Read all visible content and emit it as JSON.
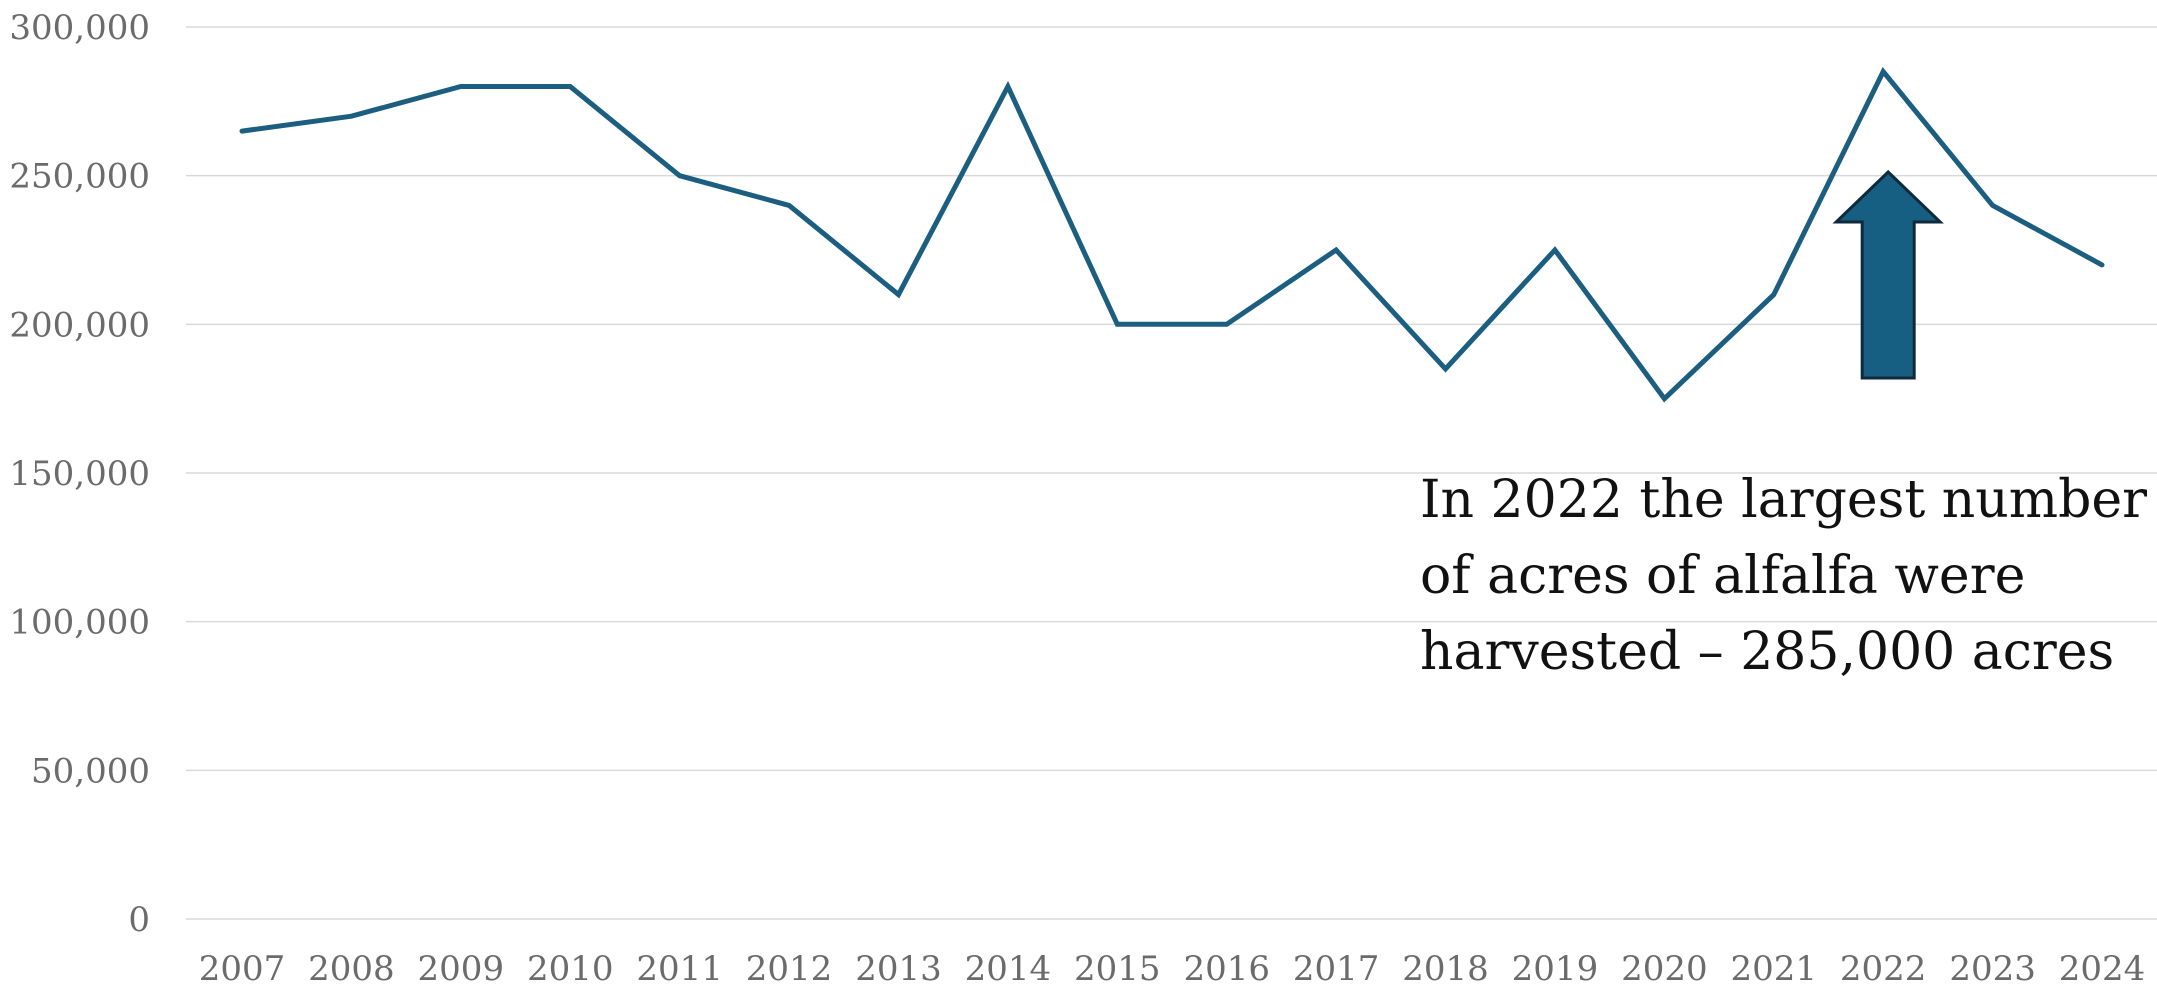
{
  "colors": {
    "series_line": "#1b5e80",
    "arrow_fill": "#165f82",
    "arrow_stroke": "#0f2a3a",
    "gridline": "#d9d9d9",
    "tick_text": "#6b6b6b"
  },
  "chart_data": {
    "type": "line",
    "title": "",
    "xlabel": "",
    "ylabel": "",
    "ylim": [
      0,
      300000
    ],
    "grid": true,
    "legend": "none",
    "y_ticks": [
      0,
      50000,
      100000,
      150000,
      200000,
      250000,
      300000
    ],
    "y_tick_labels": [
      "0",
      "50,000",
      "100,000",
      "150,000",
      "200,000",
      "250,000",
      "300,000"
    ],
    "categories": [
      "2007",
      "2008",
      "2009",
      "2010",
      "2011",
      "2012",
      "2013",
      "2014",
      "2015",
      "2016",
      "2017",
      "2018",
      "2019",
      "2020",
      "2021",
      "2022",
      "2023",
      "2024"
    ],
    "series": [
      {
        "values": [
          265000,
          270000,
          280000,
          280000,
          250000,
          240000,
          210000,
          280000,
          200000,
          200000,
          225000,
          185000,
          225000,
          175000,
          210000,
          285000,
          240000,
          220000
        ]
      }
    ],
    "annotations": [
      {
        "lines": [
          "In 2022 the largest number",
          "of acres of alfalfa were",
          "harvested – 285,000 acres"
        ],
        "arrow": "up",
        "target_category": "2022"
      }
    ]
  }
}
